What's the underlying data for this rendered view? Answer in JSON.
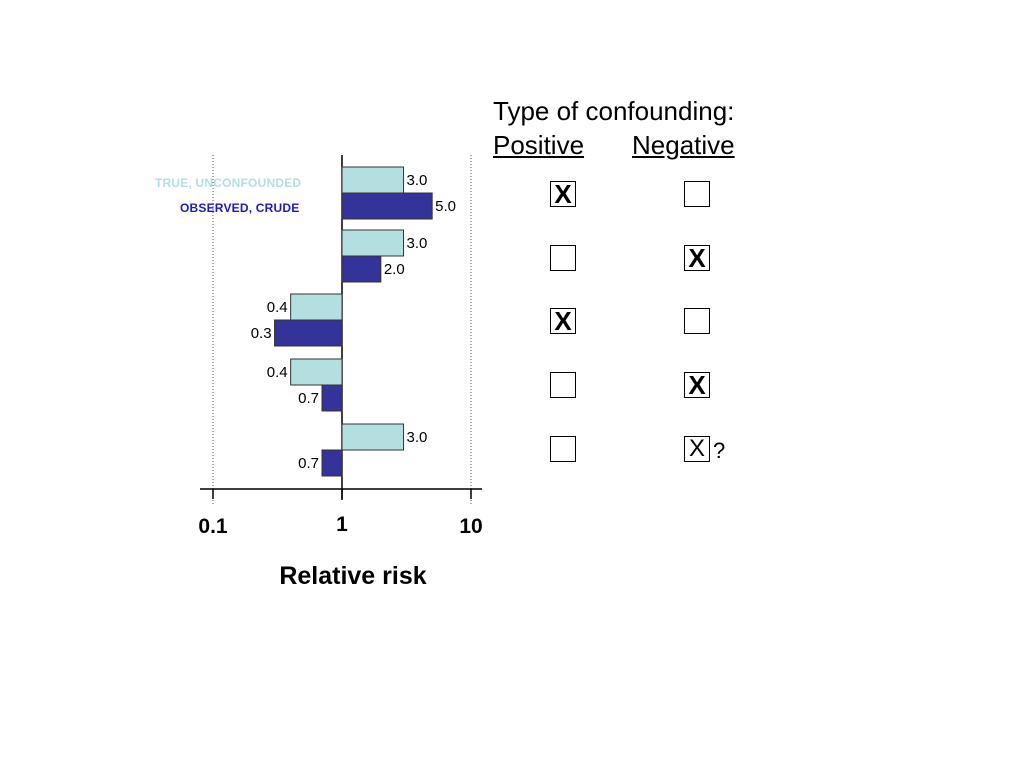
{
  "chart_data": {
    "type": "bar",
    "orientation": "horizontal",
    "x_scale": "log",
    "xlim": [
      0.1,
      10
    ],
    "x_ticks": [
      "0.1",
      "1",
      "10"
    ],
    "xlabel": "Relative risk",
    "reference_value": 1,
    "series": [
      {
        "name": "TRUE, UNCONFOUNDED",
        "color": "#b3dfe0",
        "values": [
          3.0,
          3.0,
          0.4,
          0.4,
          3.0
        ],
        "labels": [
          "3.0",
          "3.0",
          "0.4",
          "0.4",
          "3.0"
        ]
      },
      {
        "name": "OBSERVED, CRUDE",
        "color": "#33339a",
        "values": [
          5.0,
          2.0,
          0.3,
          0.7,
          0.7
        ],
        "labels": [
          "5.0",
          "2.0",
          "0.3",
          "0.7",
          "0.7"
        ]
      }
    ]
  },
  "panel": {
    "title": "Type of confounding:",
    "positive_header": "Positive",
    "negative_header": "Negative",
    "rows": [
      {
        "positive": "X",
        "negative": ""
      },
      {
        "positive": "",
        "negative": "X"
      },
      {
        "positive": "X",
        "negative": ""
      },
      {
        "positive": "",
        "negative": "X"
      },
      {
        "positive": "",
        "negative": "X",
        "note": "?"
      }
    ]
  }
}
